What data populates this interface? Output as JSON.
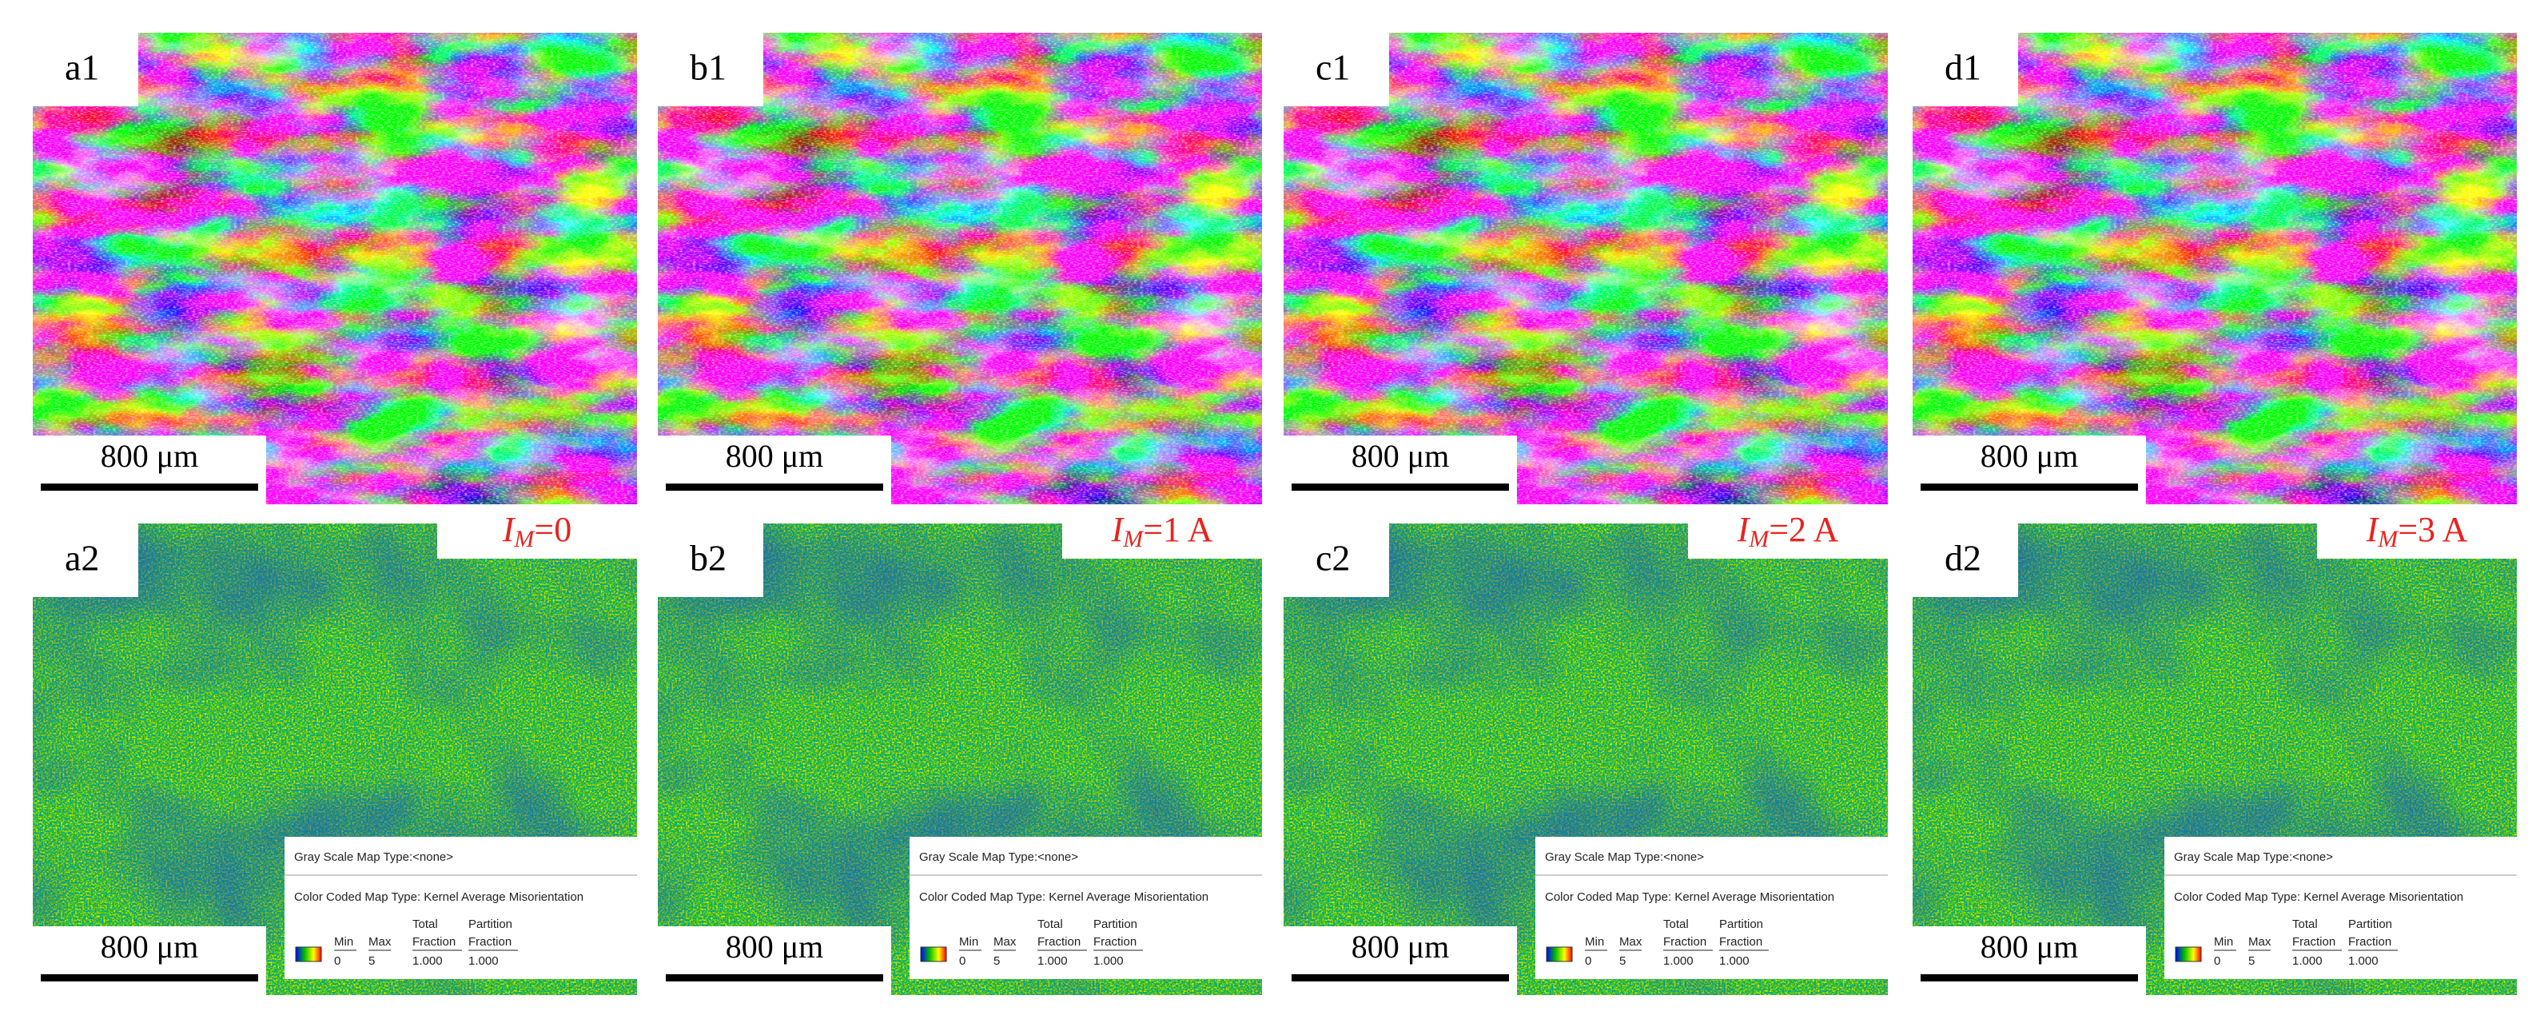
{
  "columns": [
    {
      "top": {
        "label": "a1",
        "scale_bar": "800 μm"
      },
      "condition": {
        "symbol": "I",
        "subscript": "M",
        "value": "=0"
      },
      "bottom": {
        "label": "a2",
        "scale_bar": "800 μm",
        "legend": {
          "gray_scale": "Gray Scale Map Type:<none>",
          "color_coded": "Color Coded Map Type: Kernel Average Misorientation",
          "headers": [
            [
              "Min"
            ],
            [
              "Max"
            ],
            [
              "Total",
              "Fraction"
            ],
            [
              "Partition",
              "Fraction"
            ]
          ],
          "values": [
            "0",
            "5",
            "1.000",
            "1.000"
          ]
        }
      }
    },
    {
      "top": {
        "label": "b1",
        "scale_bar": "800 μm"
      },
      "condition": {
        "symbol": "I",
        "subscript": "M",
        "value": "=1 A"
      },
      "bottom": {
        "label": "b2",
        "scale_bar": "800 μm",
        "legend": {
          "gray_scale": "Gray Scale Map Type:<none>",
          "color_coded": "Color Coded Map Type: Kernel Average Misorientation",
          "headers": [
            [
              "Min"
            ],
            [
              "Max"
            ],
            [
              "Total",
              "Fraction"
            ],
            [
              "Partition",
              "Fraction"
            ]
          ],
          "values": [
            "0",
            "5",
            "1.000",
            "1.000"
          ]
        }
      }
    },
    {
      "top": {
        "label": "c1",
        "scale_bar": "800 μm"
      },
      "condition": {
        "symbol": "I",
        "subscript": "M",
        "value": "=2 A"
      },
      "bottom": {
        "label": "c2",
        "scale_bar": "800 μm",
        "legend": {
          "gray_scale": "Gray Scale Map Type:<none>",
          "color_coded": "Color Coded Map Type: Kernel Average Misorientation",
          "headers": [
            [
              "Min"
            ],
            [
              "Max"
            ],
            [
              "Total",
              "Fraction"
            ],
            [
              "Partition",
              "Fraction"
            ]
          ],
          "values": [
            "0",
            "5",
            "1.000",
            "1.000"
          ]
        }
      }
    },
    {
      "top": {
        "label": "d1",
        "scale_bar": "800 μm"
      },
      "condition": {
        "symbol": "I",
        "subscript": "M",
        "value": "=3 A"
      },
      "bottom": {
        "label": "d2",
        "scale_bar": "800 μm",
        "legend": {
          "gray_scale": "Gray Scale Map Type:<none>",
          "color_coded": "Color Coded Map Type: Kernel Average Misorientation",
          "headers": [
            [
              "Min"
            ],
            [
              "Max"
            ],
            [
              "Total",
              "Fraction"
            ],
            [
              "Partition",
              "Fraction"
            ]
          ],
          "values": [
            "0",
            "5",
            "1.000",
            "1.000"
          ]
        }
      }
    }
  ]
}
